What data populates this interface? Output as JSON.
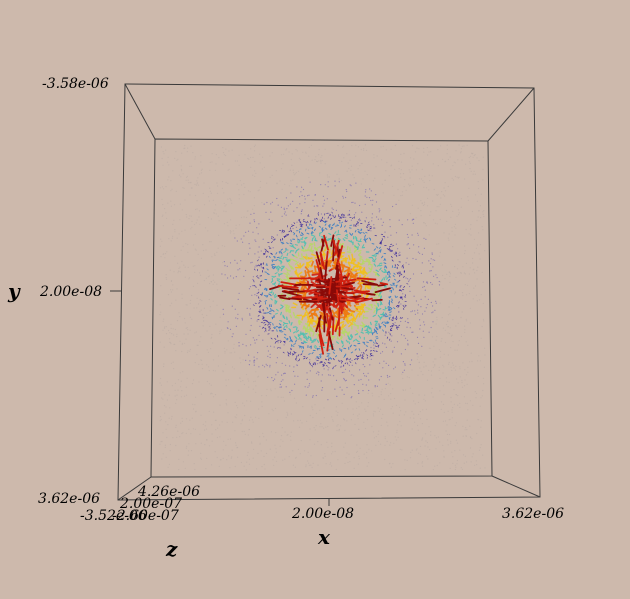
{
  "colors": {
    "background": "#cdb9ac",
    "box_lines": "#3a3a3a",
    "colormap": [
      "#3a2a9a",
      "#3d7fc4",
      "#4fc0b0",
      "#b7d66a",
      "#f0c020",
      "#ee7a10",
      "#d02010",
      "#8a0a08"
    ]
  },
  "axes": {
    "y": {
      "title": "y",
      "ticks": [
        "-3.58e-06",
        "2.00e-08",
        "3.62e-06"
      ]
    },
    "x": {
      "title": "x",
      "ticks": [
        "2.00e-08",
        "3.62e-06"
      ]
    },
    "z": {
      "title": "z",
      "ticks": [
        "4.26e-06",
        "2.00e-07",
        "-3.52e-06",
        "-2.60e-07"
      ]
    }
  }
}
